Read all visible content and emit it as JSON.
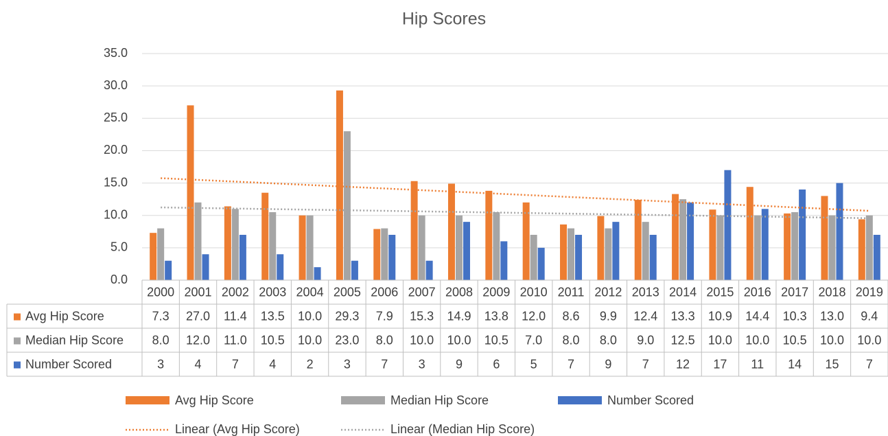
{
  "chart_data": {
    "type": "bar",
    "title": "Hip Scores",
    "categories": [
      "2000",
      "2001",
      "2002",
      "2003",
      "2004",
      "2005",
      "2006",
      "2007",
      "2008",
      "2009",
      "2010",
      "2011",
      "2012",
      "2013",
      "2014",
      "2015",
      "2016",
      "2017",
      "2018",
      "2019"
    ],
    "series": [
      {
        "name": "Avg Hip Score",
        "color": "#ED7D31",
        "values": [
          7.3,
          27,
          11.4,
          13.5,
          10,
          29.3,
          7.9,
          15.3,
          14.9,
          13.8,
          12,
          8.6,
          9.9,
          12.4,
          13.3,
          10.9,
          14.4,
          10.3,
          13,
          9.4
        ],
        "value_labels": [
          "7.3",
          "27.0",
          "11.4",
          "13.5",
          "10.0",
          "29.3",
          "7.9",
          "15.3",
          "14.9",
          "13.8",
          "12.0",
          "8.6",
          "9.9",
          "12.4",
          "13.3",
          "10.9",
          "14.4",
          "10.3",
          "13.0",
          "9.4"
        ]
      },
      {
        "name": "Median Hip Score",
        "color": "#A5A5A5",
        "values": [
          8,
          12,
          11,
          10.5,
          10,
          23,
          8,
          10,
          10,
          10.5,
          7,
          8,
          8,
          9,
          12.5,
          10,
          10,
          10.5,
          10,
          10
        ],
        "value_labels": [
          "8.0",
          "12.0",
          "11.0",
          "10.5",
          "10.0",
          "23.0",
          "8.0",
          "10.0",
          "10.0",
          "10.5",
          "7.0",
          "8.0",
          "8.0",
          "9.0",
          "12.5",
          "10.0",
          "10.0",
          "10.5",
          "10.0",
          "10.0"
        ]
      },
      {
        "name": "Number Scored",
        "color": "#4472C4",
        "values": [
          3,
          4,
          7,
          4,
          2,
          3,
          7,
          3,
          9,
          6,
          5,
          7,
          9,
          7,
          12,
          17,
          11,
          14,
          15,
          7
        ]
      }
    ],
    "trendlines": [
      {
        "name": "Linear (Avg Hip Score)",
        "series": 0,
        "color": "#ED7D31"
      },
      {
        "name": "Linear (Median Hip Score)",
        "series": 1,
        "color": "#A5A5A5"
      }
    ],
    "ylim": [
      0,
      35
    ],
    "yticks": [
      {
        "value": 0,
        "label": "0.0"
      },
      {
        "value": 5,
        "label": "5.0"
      },
      {
        "value": 10,
        "label": "10.0"
      },
      {
        "value": 15,
        "label": "15.0"
      },
      {
        "value": 20,
        "label": "20.0"
      },
      {
        "value": 25,
        "label": "25.0"
      },
      {
        "value": 30,
        "label": "30.0"
      },
      {
        "value": 35,
        "label": "35.0"
      }
    ],
    "grid": true
  }
}
